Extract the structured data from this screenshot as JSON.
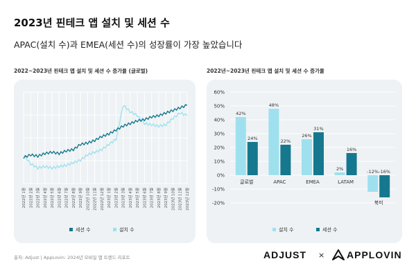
{
  "header": {
    "title": "2023년 핀테크 앱 설치 및 세션 수",
    "subtitle": "APAC(설치 수)과 EMEA(세션 수)의 성장률이 가장 높았습니다"
  },
  "footer": {
    "source": "출처: Adjust | AppLovin: 2024년 모바일 앱 트렌드 리포트",
    "logo_left": "ADJUST",
    "times": "×",
    "logo_right": "APPLOVIN"
  },
  "colors": {
    "sessions": "#16788e",
    "installs": "#9fe0ef",
    "card_bg": "#eef2f4",
    "grid": "#ffffff"
  },
  "chart_data": [
    {
      "type": "line",
      "title": "2022~2023년 핀테크 앱 설치 및 세션 수 증가율 (글로벌)",
      "x": [
        "2022년 1월",
        "2022년 2월",
        "2022년 3월",
        "2022년 4월",
        "2022년 5월",
        "2022년 6월",
        "2022년 7월",
        "2022년 8월",
        "2022년 9월",
        "2022년 10월",
        "2022년 11월",
        "2022년 12월",
        "2023년 1월",
        "2023년 2월",
        "2023년 3월",
        "2023년 4월",
        "2023년 5월",
        "2023년 6월",
        "2023년 7월",
        "2023년 8월",
        "2023년 9월",
        "2023년 10월",
        "2023년 11월",
        "2023년 12월"
      ],
      "series": [
        {
          "name": "세션 수",
          "values": [
            20,
            22,
            21,
            23,
            24,
            23,
            25,
            26,
            30,
            31,
            33,
            36,
            38,
            41,
            44,
            46,
            48,
            49,
            51,
            52,
            54,
            56,
            58,
            60
          ]
        },
        {
          "name": "설치 수",
          "values": [
            22,
            15,
            12,
            13,
            12,
            13,
            14,
            16,
            18,
            22,
            24,
            26,
            30,
            34,
            60,
            55,
            52,
            46,
            45,
            44,
            45,
            50,
            54,
            52
          ]
        }
      ],
      "grid": true,
      "legend": "bottom"
    },
    {
      "type": "bar",
      "title": "2022년~2023년 핀테크 앱 설치 및 세션 수 증가율",
      "categories": [
        "글로벌",
        "APAC",
        "EMEA",
        "LATAM",
        "북미"
      ],
      "series": [
        {
          "name": "설치 수",
          "values": [
            42,
            48,
            26,
            2,
            -12
          ]
        },
        {
          "name": "세션 수",
          "values": [
            24,
            22,
            31,
            16,
            -16
          ]
        }
      ],
      "data_labels": {
        "installs": [
          "42%",
          "48%",
          "26%",
          "2%",
          "-12%"
        ],
        "sessions": [
          "24%",
          "22%",
          "31%",
          "16%",
          "-16%"
        ]
      },
      "yticks": [
        "60%",
        "50%",
        "40%",
        "30%",
        "20%",
        "10%",
        "0%",
        "-10%",
        "-20%"
      ],
      "ylim": [
        -20,
        60
      ],
      "grid": true,
      "legend": "bottom"
    }
  ]
}
